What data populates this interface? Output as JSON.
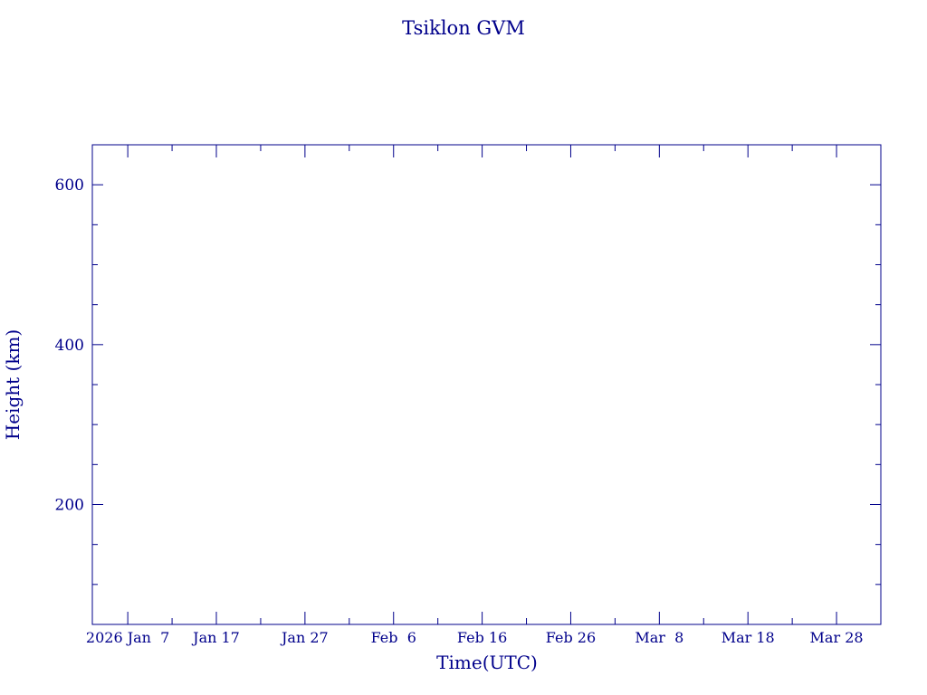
{
  "chart_data": {
    "type": "line",
    "title": "Tsiklon GVM",
    "xlabel": "Time(UTC)",
    "ylabel": "Height (km)",
    "x_axis_kind": "date",
    "xlim": [
      "2026-01-03",
      "2026-04-02"
    ],
    "ylim": [
      50,
      650
    ],
    "x_tick_labels": [
      {
        "date": "2026-01-07",
        "label": "2026 Jan  7"
      },
      {
        "date": "2026-01-17",
        "label": "Jan 17"
      },
      {
        "date": "2026-01-27",
        "label": "Jan 27"
      },
      {
        "date": "2026-02-06",
        "label": "Feb  6"
      },
      {
        "date": "2026-02-16",
        "label": "Feb 16"
      },
      {
        "date": "2026-02-26",
        "label": "Feb 26"
      },
      {
        "date": "2026-03-08",
        "label": "Mar  8"
      },
      {
        "date": "2026-03-18",
        "label": "Mar 18"
      },
      {
        "date": "2026-03-28",
        "label": "Mar 28"
      }
    ],
    "y_ticks": [
      {
        "value": 200,
        "label": "200"
      },
      {
        "value": 400,
        "label": "400"
      },
      {
        "value": 600,
        "label": "600"
      }
    ],
    "y_minor_ticks": [
      100,
      150,
      250,
      300,
      350,
      450,
      500,
      550
    ],
    "x_minor_tick_dates": [
      "2026-01-12",
      "2026-01-22",
      "2026-02-01",
      "2026-02-11",
      "2026-02-21",
      "2026-03-03",
      "2026-03-13",
      "2026-03-23"
    ],
    "grid": false,
    "legend": "none",
    "series": [],
    "colors": {
      "ink": "#00008b",
      "background": "#ffffff"
    }
  }
}
